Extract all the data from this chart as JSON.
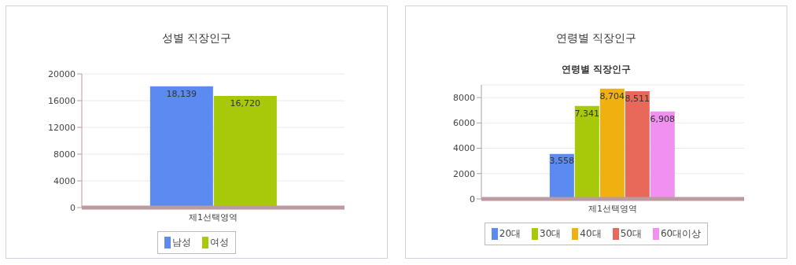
{
  "chart_data": [
    {
      "type": "bar",
      "title": "성별 직장인구",
      "categories": [
        "제1선택영역"
      ],
      "series": [
        {
          "name": "남성",
          "color": "#5b8af0",
          "values": [
            18139
          ],
          "value_labels": [
            "18,139"
          ]
        },
        {
          "name": "여성",
          "color": "#a8c80a",
          "values": [
            16720
          ],
          "value_labels": [
            "16,720"
          ]
        }
      ],
      "ylim": [
        0,
        20000
      ],
      "yticks": [
        0,
        4000,
        8000,
        12000,
        16000,
        20000
      ],
      "grid": "y",
      "legend": "bottom"
    },
    {
      "type": "bar",
      "title": "연령별 직장인구",
      "subtitle": "연령별 직장인구",
      "categories": [
        "제1선택영역"
      ],
      "series": [
        {
          "name": "20대",
          "color": "#5b8af0",
          "values": [
            3558
          ],
          "value_labels": [
            "3,558"
          ]
        },
        {
          "name": "30대",
          "color": "#a8c80a",
          "values": [
            7341
          ],
          "value_labels": [
            "7,341"
          ]
        },
        {
          "name": "40대",
          "color": "#f0b010",
          "values": [
            8704
          ],
          "value_labels": [
            "8,704"
          ]
        },
        {
          "name": "50대",
          "color": "#e8685a",
          "values": [
            8511
          ],
          "value_labels": [
            "8,511"
          ]
        },
        {
          "name": "60대이상",
          "color": "#f090f0",
          "values": [
            6908
          ],
          "value_labels": [
            "6,908"
          ]
        }
      ],
      "ylim": [
        0,
        9000
      ],
      "yticks": [
        0,
        2000,
        4000,
        6000,
        8000
      ],
      "grid": "y",
      "legend": "bottom"
    }
  ]
}
